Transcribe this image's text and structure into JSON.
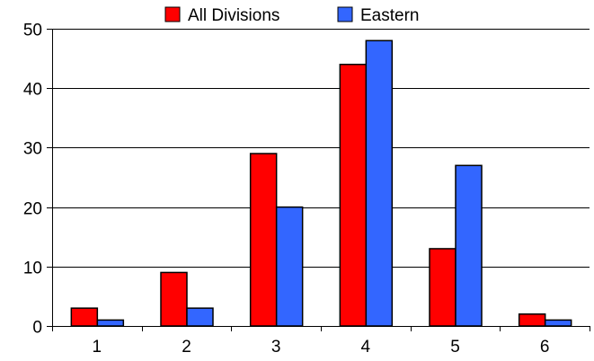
{
  "chart_data": {
    "type": "bar",
    "title": "",
    "xlabel": "",
    "ylabel": "",
    "categories": [
      "1",
      "2",
      "3",
      "4",
      "5",
      "6"
    ],
    "series": [
      {
        "name": "All Divisions",
        "color": "#ff0000",
        "values": [
          3,
          9,
          29,
          44,
          13,
          2
        ]
      },
      {
        "name": "Eastern",
        "color": "#3366ff",
        "values": [
          1,
          3,
          20,
          48,
          27,
          1
        ]
      }
    ],
    "ylim": [
      0,
      50
    ],
    "yticks": [
      0,
      10,
      20,
      30,
      40,
      50
    ],
    "ytick_labels": [
      "0",
      "10",
      "20",
      "30",
      "40",
      "50"
    ],
    "grid": true,
    "legend_position": "top-center"
  }
}
